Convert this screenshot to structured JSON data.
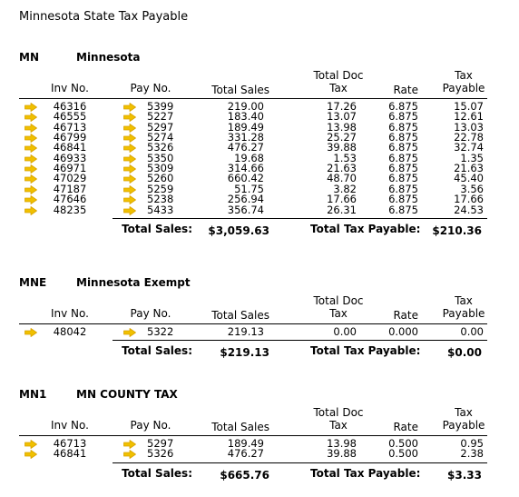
{
  "title": "Minnesota State Tax Payable",
  "colors": {
    "arrow": "#f0c000",
    "arrow_outline": "#d9a300"
  },
  "icons": {
    "row_arrow": "arrow-right-icon"
  },
  "sections": [
    {
      "code": "MN",
      "name": "Minnesota",
      "headers": {
        "inv": "Inv No.",
        "pay": "Pay No.",
        "sales": "Total Sales",
        "doc_tax_1": "Total Doc",
        "doc_tax_2": "Tax",
        "rate": "Rate",
        "payable_1": "Tax",
        "payable_2": "Payable"
      },
      "rows": [
        {
          "inv": "46316",
          "pay": "5399",
          "sales": "219.00",
          "doc_tax": "17.26",
          "rate": "6.875",
          "payable": "15.07"
        },
        {
          "inv": "46555",
          "pay": "5227",
          "sales": "183.40",
          "doc_tax": "13.07",
          "rate": "6.875",
          "payable": "12.61"
        },
        {
          "inv": "46713",
          "pay": "5297",
          "sales": "189.49",
          "doc_tax": "13.98",
          "rate": "6.875",
          "payable": "13.03"
        },
        {
          "inv": "46799",
          "pay": "5274",
          "sales": "331.28",
          "doc_tax": "25.27",
          "rate": "6.875",
          "payable": "22.78"
        },
        {
          "inv": "46841",
          "pay": "5326",
          "sales": "476.27",
          "doc_tax": "39.88",
          "rate": "6.875",
          "payable": "32.74"
        },
        {
          "inv": "46933",
          "pay": "5350",
          "sales": "19.68",
          "doc_tax": "1.53",
          "rate": "6.875",
          "payable": "1.35"
        },
        {
          "inv": "46971",
          "pay": "5309",
          "sales": "314.66",
          "doc_tax": "21.63",
          "rate": "6.875",
          "payable": "21.63"
        },
        {
          "inv": "47029",
          "pay": "5260",
          "sales": "660.42",
          "doc_tax": "48.70",
          "rate": "6.875",
          "payable": "45.40"
        },
        {
          "inv": "47187",
          "pay": "5259",
          "sales": "51.75",
          "doc_tax": "3.82",
          "rate": "6.875",
          "payable": "3.56"
        },
        {
          "inv": "47646",
          "pay": "5238",
          "sales": "256.94",
          "doc_tax": "17.66",
          "rate": "6.875",
          "payable": "17.66"
        },
        {
          "inv": "48235",
          "pay": "5433",
          "sales": "356.74",
          "doc_tax": "26.31",
          "rate": "6.875",
          "payable": "24.53"
        }
      ],
      "totals": {
        "sales_label": "Total Sales:",
        "sales_value": "$3,059.63",
        "payable_label": "Total Tax Payable:",
        "payable_value": "$210.36"
      }
    },
    {
      "code": "MNE",
      "name": "Minnesota Exempt",
      "headers": {
        "inv": "Inv No.",
        "pay": "Pay No.",
        "sales": "Total Sales",
        "doc_tax_1": "Total Doc",
        "doc_tax_2": "Tax",
        "rate": "Rate",
        "payable_1": "Tax",
        "payable_2": "Payable"
      },
      "rows": [
        {
          "inv": "48042",
          "pay": "5322",
          "sales": "219.13",
          "doc_tax": "0.00",
          "rate": "0.000",
          "payable": "0.00"
        }
      ],
      "totals": {
        "sales_label": "Total Sales:",
        "sales_value": "$219.13",
        "payable_label": "Total Tax Payable:",
        "payable_value": "$0.00"
      }
    },
    {
      "code": "MN1",
      "name": "MN COUNTY TAX",
      "headers": {
        "inv": "Inv No.",
        "pay": "Pay No.",
        "sales": "Total Sales",
        "doc_tax_1": "Total Doc",
        "doc_tax_2": "Tax",
        "rate": "Rate",
        "payable_1": "Tax",
        "payable_2": "Payable"
      },
      "rows": [
        {
          "inv": "46713",
          "pay": "5297",
          "sales": "189.49",
          "doc_tax": "13.98",
          "rate": "0.500",
          "payable": "0.95"
        },
        {
          "inv": "46841",
          "pay": "5326",
          "sales": "476.27",
          "doc_tax": "39.88",
          "rate": "0.500",
          "payable": "2.38"
        }
      ],
      "totals": {
        "sales_label": "Total Sales:",
        "sales_value": "$665.76",
        "payable_label": "Total Tax Payable:",
        "payable_value": "$3.33"
      }
    }
  ]
}
